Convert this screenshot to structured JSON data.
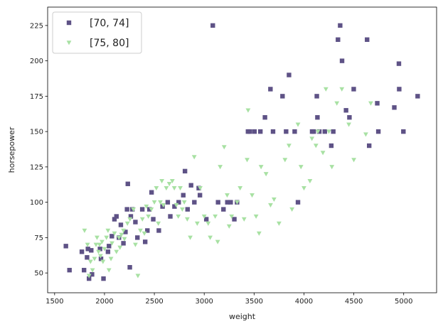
{
  "chart_data": {
    "type": "scatter",
    "title": "",
    "xlabel": "weight",
    "ylabel": "horsepower",
    "xlim": [
      1430,
      5330
    ],
    "ylim": [
      36,
      238
    ],
    "xticks": [
      1500,
      2000,
      2500,
      3000,
      3500,
      4000,
      4500,
      5000
    ],
    "yticks": [
      50,
      75,
      100,
      125,
      150,
      175,
      200,
      225
    ],
    "grid": false,
    "legend": {
      "position": "top-left"
    },
    "series": [
      {
        "name": "[70, 74]",
        "marker": "square",
        "color": "#5e5286",
        "points": [
          [
            1613,
            69
          ],
          [
            1649,
            52
          ],
          [
            1773,
            65
          ],
          [
            1795,
            52
          ],
          [
            1825,
            61
          ],
          [
            1834,
            67
          ],
          [
            1845,
            46
          ],
          [
            1867,
            66
          ],
          [
            1875,
            49
          ],
          [
            1955,
            67
          ],
          [
            1965,
            60
          ],
          [
            1990,
            46
          ],
          [
            2035,
            65
          ],
          [
            2045,
            69
          ],
          [
            2074,
            76
          ],
          [
            2100,
            88
          ],
          [
            2120,
            90
          ],
          [
            2145,
            75
          ],
          [
            2164,
            84
          ],
          [
            2190,
            71
          ],
          [
            2210,
            79
          ],
          [
            2226,
            95
          ],
          [
            2234,
            113
          ],
          [
            2254,
            54
          ],
          [
            2264,
            90
          ],
          [
            2279,
            95
          ],
          [
            2310,
            86
          ],
          [
            2330,
            75
          ],
          [
            2379,
            95
          ],
          [
            2408,
            72
          ],
          [
            2430,
            80
          ],
          [
            2451,
            95
          ],
          [
            2472,
            107
          ],
          [
            2489,
            88
          ],
          [
            2545,
            80
          ],
          [
            2582,
            97
          ],
          [
            2634,
            100
          ],
          [
            2660,
            90
          ],
          [
            2702,
            97
          ],
          [
            2744,
            100
          ],
          [
            2790,
            105
          ],
          [
            2807,
            122
          ],
          [
            2833,
            95
          ],
          [
            2868,
            112
          ],
          [
            2901,
            100
          ],
          [
            2945,
            110
          ],
          [
            2957,
            105
          ],
          [
            3021,
            88
          ],
          [
            3086,
            225
          ],
          [
            3139,
            100
          ],
          [
            3193,
            95
          ],
          [
            3232,
            100
          ],
          [
            3265,
            100
          ],
          [
            3302,
            88
          ],
          [
            3329,
            100
          ],
          [
            3439,
            150
          ],
          [
            3457,
            150
          ],
          [
            3504,
            150
          ],
          [
            3563,
            150
          ],
          [
            3609,
            160
          ],
          [
            3664,
            180
          ],
          [
            3690,
            150
          ],
          [
            3785,
            175
          ],
          [
            3821,
            150
          ],
          [
            3850,
            190
          ],
          [
            3907,
            150
          ],
          [
            3940,
            100
          ],
          [
            4082,
            150
          ],
          [
            4098,
            150
          ],
          [
            4129,
            175
          ],
          [
            4135,
            160
          ],
          [
            4154,
            150
          ],
          [
            4209,
            150
          ],
          [
            4274,
            140
          ],
          [
            4294,
            150
          ],
          [
            4341,
            215
          ],
          [
            4363,
            225
          ],
          [
            4382,
            200
          ],
          [
            4422,
            165
          ],
          [
            4456,
            160
          ],
          [
            4499,
            180
          ],
          [
            4633,
            215
          ],
          [
            4654,
            140
          ],
          [
            4735,
            170
          ],
          [
            4746,
            150
          ],
          [
            4906,
            167
          ],
          [
            4952,
            198
          ],
          [
            4955,
            180
          ],
          [
            4997,
            150
          ],
          [
            5140,
            175
          ]
        ]
      },
      {
        "name": "[75, 80]",
        "marker": "triangle-down",
        "color": "#a8e1a3",
        "points": [
          [
            1800,
            80
          ],
          [
            1830,
            70
          ],
          [
            1845,
            48
          ],
          [
            1860,
            58
          ],
          [
            1880,
            52
          ],
          [
            1900,
            60
          ],
          [
            1915,
            70
          ],
          [
            1925,
            75
          ],
          [
            1940,
            65
          ],
          [
            1950,
            70
          ],
          [
            1960,
            62
          ],
          [
            1975,
            72
          ],
          [
            1985,
            58
          ],
          [
            2000,
            67
          ],
          [
            2020,
            75
          ],
          [
            2035,
            80
          ],
          [
            2045,
            52
          ],
          [
            2065,
            60
          ],
          [
            2075,
            71
          ],
          [
            2100,
            78
          ],
          [
            2120,
            65
          ],
          [
            2145,
            75
          ],
          [
            2155,
            68
          ],
          [
            2170,
            77
          ],
          [
            2190,
            80
          ],
          [
            2200,
            74
          ],
          [
            2230,
            85
          ],
          [
            2255,
            88
          ],
          [
            2290,
            95
          ],
          [
            2310,
            70
          ],
          [
            2335,
            48
          ],
          [
            2360,
            80
          ],
          [
            2380,
            88
          ],
          [
            2400,
            78
          ],
          [
            2420,
            97
          ],
          [
            2440,
            90
          ],
          [
            2470,
            95
          ],
          [
            2500,
            100
          ],
          [
            2520,
            110
          ],
          [
            2540,
            85
          ],
          [
            2560,
            100
          ],
          [
            2575,
            115
          ],
          [
            2590,
            98
          ],
          [
            2620,
            110
          ],
          [
            2650,
            113
          ],
          [
            2680,
            115
          ],
          [
            2700,
            110
          ],
          [
            2720,
            98
          ],
          [
            2740,
            90
          ],
          [
            2760,
            110
          ],
          [
            2780,
            95
          ],
          [
            2800,
            100
          ],
          [
            2830,
            88
          ],
          [
            2860,
            75
          ],
          [
            2900,
            132
          ],
          [
            2930,
            85
          ],
          [
            2960,
            110
          ],
          [
            3000,
            90
          ],
          [
            3040,
            85
          ],
          [
            3060,
            75
          ],
          [
            3110,
            90
          ],
          [
            3135,
            72
          ],
          [
            3160,
            125
          ],
          [
            3200,
            139
          ],
          [
            3230,
            105
          ],
          [
            3250,
            83
          ],
          [
            3275,
            90
          ],
          [
            3330,
            100
          ],
          [
            3360,
            110
          ],
          [
            3400,
            88
          ],
          [
            3430,
            130
          ],
          [
            3440,
            165
          ],
          [
            3480,
            105
          ],
          [
            3520,
            90
          ],
          [
            3550,
            78
          ],
          [
            3570,
            125
          ],
          [
            3620,
            120
          ],
          [
            3665,
            98
          ],
          [
            3700,
            102
          ],
          [
            3750,
            85
          ],
          [
            3810,
            130
          ],
          [
            3850,
            140
          ],
          [
            3880,
            95
          ],
          [
            3940,
            155
          ],
          [
            3970,
            125
          ],
          [
            4000,
            110
          ],
          [
            4060,
            115
          ],
          [
            4080,
            145
          ],
          [
            4120,
            140
          ],
          [
            4140,
            150
          ],
          [
            4190,
            135
          ],
          [
            4220,
            180
          ],
          [
            4250,
            150
          ],
          [
            4280,
            125
          ],
          [
            4330,
            170
          ],
          [
            4380,
            180
          ],
          [
            4450,
            155
          ],
          [
            4500,
            130
          ],
          [
            4620,
            148
          ],
          [
            4670,
            170
          ]
        ]
      }
    ]
  }
}
